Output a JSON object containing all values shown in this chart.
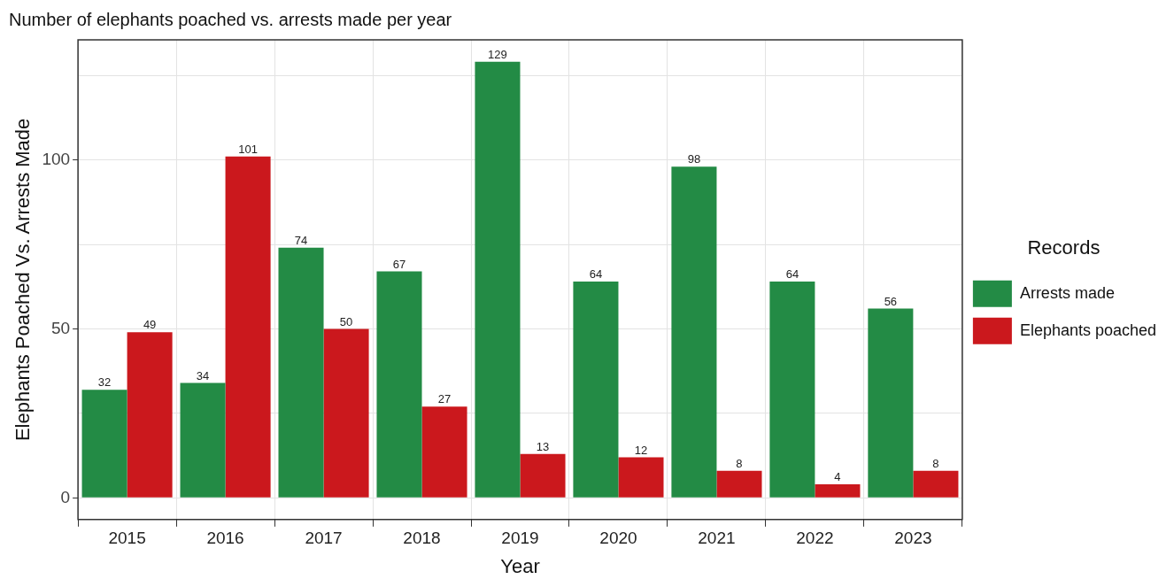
{
  "chart_data": {
    "type": "bar",
    "title": "Number of elephants poached vs. arrests made per year",
    "xlabel": "Year",
    "ylabel": "Elephants Poached Vs. Arrests Made",
    "legend_title": "Records",
    "categories": [
      "2015",
      "2016",
      "2017",
      "2018",
      "2019",
      "2020",
      "2021",
      "2022",
      "2023"
    ],
    "series": [
      {
        "name": "Arrests made",
        "color": "#238b45",
        "values": [
          32,
          34,
          74,
          67,
          129,
          64,
          98,
          64,
          56
        ]
      },
      {
        "name": "Elephants poached",
        "color": "#cb181d",
        "values": [
          49,
          101,
          50,
          27,
          13,
          12,
          8,
          4,
          8
        ]
      }
    ],
    "ylim": [
      -6.4,
      135.5
    ],
    "yticks": [
      0,
      {
        "value": 25,
        "label": null
      },
      50,
      {
        "value": 75,
        "label": null
      },
      100,
      {
        "value": 125,
        "label": null
      }
    ],
    "grid": true,
    "legend": "right",
    "data_labels": true
  }
}
